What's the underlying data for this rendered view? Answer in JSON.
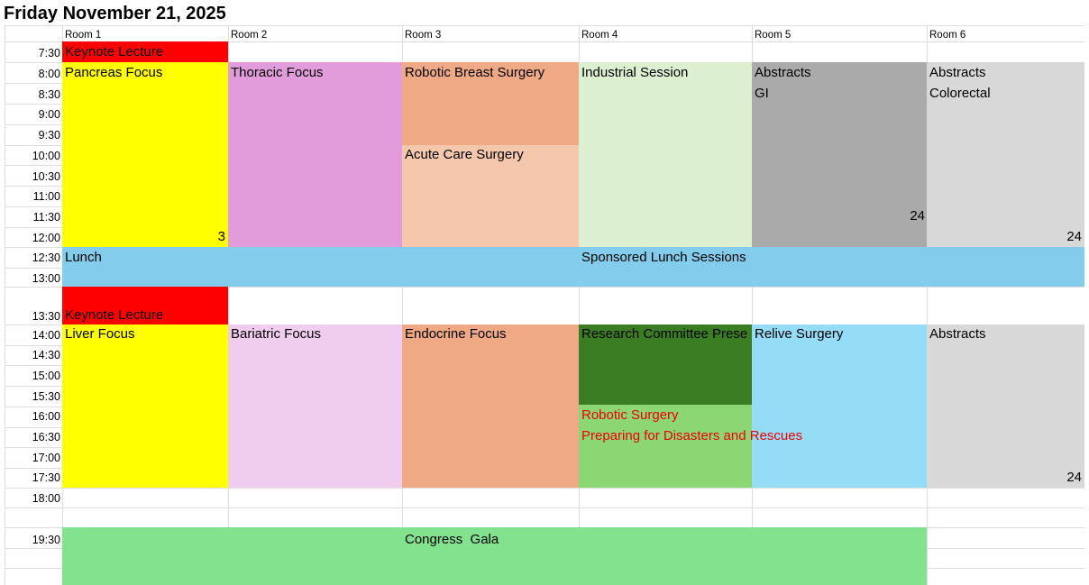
{
  "title": "Friday November 21, 2025",
  "rooms": [
    "Room 1",
    "Room 2",
    "Room 3",
    "Room 4",
    "Room 5",
    "Room 6"
  ],
  "times": [
    "7:30",
    "8:00",
    "8:30",
    "9:00",
    "9:30",
    "10:00",
    "10:30",
    "11:00",
    "11:30",
    "12:00",
    "12:30",
    "13:00",
    "13:30",
    "14:00",
    "14:30",
    "15:00",
    "15:30",
    "16:00",
    "16:30",
    "17:00",
    "17:30",
    "18:00",
    "19:30"
  ],
  "sessions": {
    "keynote_am": "Keynote Lecture",
    "pancreas": "Pancreas Focus",
    "pancreas_count": "3",
    "thoracic": "Thoracic Focus",
    "robotic_breast": "Robotic Breast Surgery",
    "acute_care": "Acute Care Surgery",
    "industrial": "Industrial Session",
    "abstracts_gi": "Abstracts",
    "gi": "GI",
    "abstracts_gi_count": "24",
    "abstracts_colorectal": "Abstracts",
    "colorectal": "Colorectal",
    "abstracts_colorectal_count": "24",
    "lunch": "Lunch",
    "sponsored_lunch": "Sponsored Lunch Sessions",
    "keynote_pm": "Keynote Lecture",
    "liver": "Liver Focus",
    "bariatric": "Bariatric Focus",
    "endocrine": "Endocrine Focus",
    "research_committee": "Research Committee Prese",
    "robotic_surgery": "Robotic Surgery",
    "disasters": "Preparing for Disasters and Rescues",
    "relive": "Relive Surgery",
    "abstracts_pm": "Abstracts",
    "abstracts_pm_count": "24",
    "gala": "Congress  Gala"
  },
  "colors": {
    "keynote": "#ff0000",
    "focus_yellow": "#ffff00",
    "thoracic": "#e29cdc",
    "salmon": "#f0a985",
    "peach": "#f5c8ad",
    "industrial": "#dcf0d1",
    "abstracts_dark": "#aaaaaa",
    "abstracts_light": "#d8d8d8",
    "lunch_blue": "#83cceb",
    "bariatric": "#f0cdee",
    "research_green": "#3a7d22",
    "robotic_green": "#8dd674",
    "relive_blue": "#95dcf6",
    "gala_green": "#82e28e",
    "red_text": "#ee0000"
  }
}
